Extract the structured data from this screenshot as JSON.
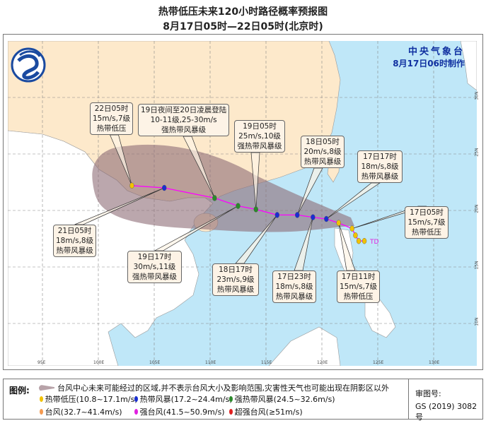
{
  "header": {
    "title": "热带低压未来120小时路径概率预报图",
    "subtitle": "8月17日05时—22日05时(北京时)"
  },
  "agency": {
    "name": "中央气象台",
    "issued": "8月17日06时制作",
    "logo": "cma-logo"
  },
  "axes": {
    "lon_labels": [
      "95E",
      "100E",
      "105E",
      "110E",
      "115E",
      "120E",
      "125E",
      "130E"
    ],
    "lat_labels": [
      "10N",
      "15N",
      "20N",
      "25N",
      "30N"
    ]
  },
  "colors": {
    "sea": "#bfe7f8",
    "china": "#fde9cb",
    "foreign": "#ffffff",
    "cone": "#8e6d76",
    "track": "#ff00ff",
    "td": "#f2c200",
    "ts": "#1a2fd0",
    "sts": "#2a8a2a",
    "ty": "#f59a50",
    "sty": "#e020e0",
    "superty": "#e02020"
  },
  "track": {
    "current_label": "TD",
    "points": [
      {
        "lon": 123.8,
        "lat": 17.3,
        "cat": "td"
      },
      {
        "lon": 123.3,
        "lat": 17.3,
        "cat": "td"
      },
      {
        "lon": 123.0,
        "lat": 17.8,
        "cat": "td"
      },
      {
        "lon": 122.7,
        "lat": 18.4,
        "cat": "td"
      },
      {
        "lon": 121.5,
        "lat": 18.9,
        "cat": "td"
      },
      {
        "lon": 120.4,
        "lat": 19.25,
        "cat": "ts"
      },
      {
        "lon": 119.2,
        "lat": 19.4,
        "cat": "ts"
      },
      {
        "lon": 117.8,
        "lat": 19.6,
        "cat": "ts"
      },
      {
        "lon": 116.0,
        "lat": 19.6,
        "cat": "ts"
      },
      {
        "lon": 114.1,
        "lat": 20.1,
        "cat": "sts"
      },
      {
        "lon": 112.5,
        "lat": 20.4,
        "cat": "sts"
      },
      {
        "lon": 110.4,
        "lat": 21.1,
        "cat": "sts"
      },
      {
        "lon": 105.9,
        "lat": 22.0,
        "cat": "ts"
      },
      {
        "lon": 103.0,
        "lat": 22.2,
        "cat": "td"
      }
    ]
  },
  "labels": [
    {
      "lines": [
        "22日05时",
        "15m/s,7级",
        "热带低压"
      ],
      "point": 13
    },
    {
      "lines": [
        "19日夜间至20日凌晨登陆",
        "10-11级,25-30m/s",
        "强热带风暴级"
      ],
      "point": 11
    },
    {
      "lines": [
        "19日05时",
        "25m/s,10级",
        "强热带风暴级"
      ],
      "point": 9
    },
    {
      "lines": [
        "18日05时",
        "20m/s,8级",
        "热带风暴级"
      ],
      "point": 7
    },
    {
      "lines": [
        "17日17时",
        "18m/s,8级",
        "热带风暴级"
      ],
      "point": 5
    },
    {
      "lines": [
        "17日05时",
        "15m/s,7级",
        "热带低压"
      ],
      "point": 3
    },
    {
      "lines": [
        "17日11时",
        "15m/s,7级",
        "热带低压"
      ],
      "point": 4
    },
    {
      "lines": [
        "17日23时",
        "18m/s,8级",
        "热带风暴级"
      ],
      "point": 6
    },
    {
      "lines": [
        "18日17时",
        "23m/s,9级",
        "热带风暴级"
      ],
      "point": 8
    },
    {
      "lines": [
        "19日17时",
        "30m/s,11级",
        "强热带风暴级"
      ],
      "point": 10
    },
    {
      "lines": [
        "21日05时",
        "18m/s,8级",
        "热带风暴级"
      ],
      "point": 12
    }
  ],
  "legend": {
    "title": "图例:",
    "cone_note": "台风中心未来可能经过的区域,并不表示台风大小及影响范围,灾害性天气也可能出现在阴影区以外",
    "items": [
      {
        "label": "热带低压(10.8~17.1m/s)",
        "color": "#f2c200"
      },
      {
        "label": "热带风暴(17.2~24.4m/s)",
        "color": "#1a2fd0"
      },
      {
        "label": "强热带风暴(24.5~32.6m/s)",
        "color": "#2a8a2a"
      },
      {
        "label": "台风(32.7~41.4m/s)",
        "color": "#f59a50"
      },
      {
        "label": "强台风(41.5~50.9m/s)",
        "color": "#e020e0"
      },
      {
        "label": "超强台风(≥51m/s)",
        "color": "#e02020"
      }
    ],
    "approval_label": "审图号:",
    "approval_number": "GS (2019) 3082号"
  }
}
